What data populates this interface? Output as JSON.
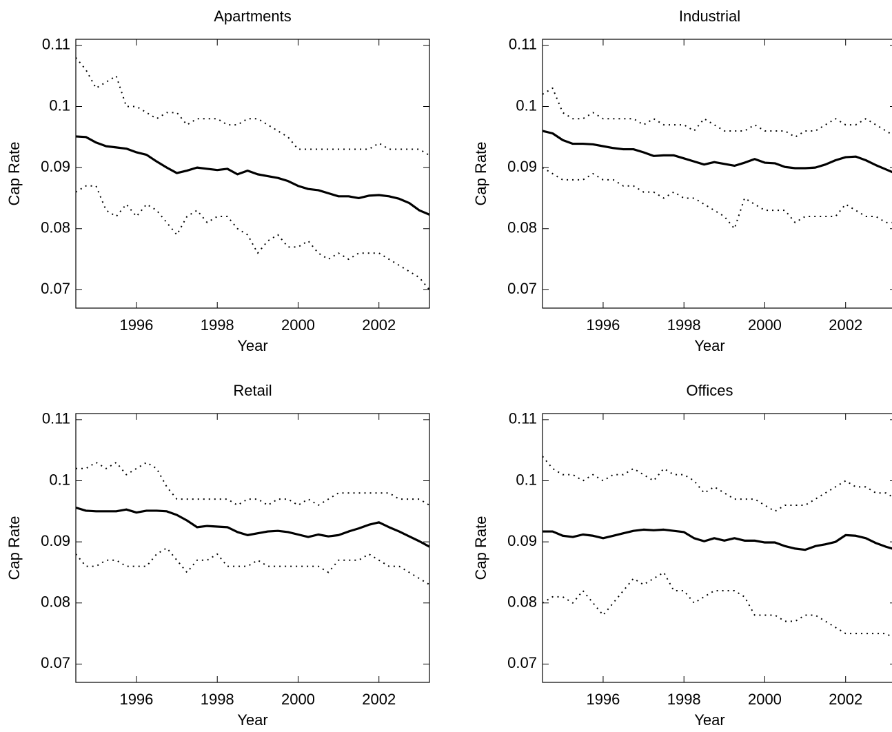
{
  "chart_data": [
    {
      "type": "line",
      "title": "Apartments",
      "xlabel": "Year",
      "ylabel": "Cap Rate",
      "x": [
        1994.5,
        1994.75,
        1995,
        1995.25,
        1995.5,
        1995.75,
        1996,
        1996.25,
        1996.5,
        1996.75,
        1997,
        1997.25,
        1997.5,
        1997.75,
        1998,
        1998.25,
        1998.5,
        1998.75,
        1999,
        1999.25,
        1999.5,
        1999.75,
        2000,
        2000.25,
        2000.5,
        2000.75,
        2001,
        2001.25,
        2001.5,
        2001.75,
        2002,
        2002.25,
        2002.5,
        2002.75,
        2003,
        2003.25
      ],
      "xlim": [
        1994.5,
        2003.25
      ],
      "xticks": [
        1996,
        1998,
        2000,
        2002
      ],
      "ylim": [
        0.067,
        0.111
      ],
      "yticks": [
        0.07,
        0.08,
        0.09,
        0.1,
        0.11
      ],
      "series": [
        {
          "color": "#000000",
          "style": "solid",
          "values": [
            0.0951,
            0.095,
            0.0941,
            0.0935,
            0.0933,
            0.0931,
            0.0925,
            0.0921,
            0.091,
            0.09,
            0.0891,
            0.0895,
            0.09,
            0.0898,
            0.0896,
            0.0898,
            0.0889,
            0.0895,
            0.0889,
            0.0886,
            0.0883,
            0.0878,
            0.087,
            0.0865,
            0.0863,
            0.0858,
            0.0853,
            0.0853,
            0.085,
            0.0854,
            0.0855,
            0.0853,
            0.0849,
            0.0842,
            0.083,
            0.0823
          ]
        },
        {
          "color": "#000000",
          "style": "dotted",
          "values": [
            0.108,
            0.106,
            0.103,
            0.104,
            0.105,
            0.1,
            0.1,
            0.099,
            0.098,
            0.099,
            0.099,
            0.097,
            0.098,
            0.098,
            0.098,
            0.097,
            0.097,
            0.098,
            0.098,
            0.097,
            0.096,
            0.095,
            0.093,
            0.093,
            0.093,
            0.093,
            0.093,
            0.093,
            0.093,
            0.093,
            0.094,
            0.093,
            0.093,
            0.093,
            0.093,
            0.092
          ]
        },
        {
          "color": "#000000",
          "style": "dotted",
          "values": [
            0.086,
            0.087,
            0.087,
            0.083,
            0.082,
            0.084,
            0.082,
            0.084,
            0.083,
            0.081,
            0.079,
            0.082,
            0.083,
            0.081,
            0.082,
            0.082,
            0.08,
            0.079,
            0.076,
            0.078,
            0.079,
            0.077,
            0.077,
            0.078,
            0.076,
            0.075,
            0.076,
            0.075,
            0.076,
            0.076,
            0.076,
            0.075,
            0.074,
            0.073,
            0.072,
            0.07
          ]
        }
      ]
    },
    {
      "type": "line",
      "title": "Industrial",
      "xlabel": "Year",
      "ylabel": "Cap Rate",
      "x": [
        1994.5,
        1994.75,
        1995,
        1995.25,
        1995.5,
        1995.75,
        1996,
        1996.25,
        1996.5,
        1996.75,
        1997,
        1997.25,
        1997.5,
        1997.75,
        1998,
        1998.25,
        1998.5,
        1998.75,
        1999,
        1999.25,
        1999.5,
        1999.75,
        2000,
        2000.25,
        2000.5,
        2000.75,
        2001,
        2001.25,
        2001.5,
        2001.75,
        2002,
        2002.25,
        2002.5,
        2002.75,
        2003,
        2003.25
      ],
      "xlim": [
        1994.5,
        2003.25
      ],
      "xticks": [
        1996,
        1998,
        2000,
        2002
      ],
      "ylim": [
        0.067,
        0.111
      ],
      "yticks": [
        0.07,
        0.08,
        0.09,
        0.1,
        0.11
      ],
      "series": [
        {
          "color": "#000000",
          "style": "solid",
          "values": [
            0.096,
            0.0956,
            0.0945,
            0.0939,
            0.0939,
            0.0938,
            0.0935,
            0.0932,
            0.093,
            0.093,
            0.0925,
            0.0919,
            0.092,
            0.092,
            0.0915,
            0.091,
            0.0905,
            0.0909,
            0.0906,
            0.0903,
            0.0908,
            0.0914,
            0.0908,
            0.0907,
            0.0901,
            0.0899,
            0.0899,
            0.09,
            0.0905,
            0.0912,
            0.0917,
            0.0918,
            0.0912,
            0.0904,
            0.0897,
            0.089
          ]
        },
        {
          "color": "#000000",
          "style": "dotted",
          "values": [
            0.102,
            0.103,
            0.099,
            0.098,
            0.098,
            0.099,
            0.098,
            0.098,
            0.098,
            0.098,
            0.097,
            0.098,
            0.097,
            0.097,
            0.097,
            0.096,
            0.098,
            0.097,
            0.096,
            0.096,
            0.096,
            0.097,
            0.096,
            0.096,
            0.096,
            0.095,
            0.096,
            0.096,
            0.097,
            0.098,
            0.097,
            0.097,
            0.098,
            0.097,
            0.096,
            0.095
          ]
        },
        {
          "color": "#000000",
          "style": "dotted",
          "values": [
            0.09,
            0.089,
            0.088,
            0.088,
            0.088,
            0.089,
            0.088,
            0.088,
            0.087,
            0.087,
            0.086,
            0.086,
            0.085,
            0.086,
            0.085,
            0.085,
            0.084,
            0.083,
            0.082,
            0.08,
            0.085,
            0.084,
            0.083,
            0.083,
            0.083,
            0.081,
            0.082,
            0.082,
            0.082,
            0.082,
            0.084,
            0.083,
            0.082,
            0.082,
            0.081,
            0.081
          ]
        }
      ]
    },
    {
      "type": "line",
      "title": "Retail",
      "xlabel": "Year",
      "ylabel": "Cap Rate",
      "x": [
        1994.5,
        1994.75,
        1995,
        1995.25,
        1995.5,
        1995.75,
        1996,
        1996.25,
        1996.5,
        1996.75,
        1997,
        1997.25,
        1997.5,
        1997.75,
        1998,
        1998.25,
        1998.5,
        1998.75,
        1999,
        1999.25,
        1999.5,
        1999.75,
        2000,
        2000.25,
        2000.5,
        2000.75,
        2001,
        2001.25,
        2001.5,
        2001.75,
        2002,
        2002.25,
        2002.5,
        2002.75,
        2003,
        2003.25
      ],
      "xlim": [
        1994.5,
        2003.25
      ],
      "xticks": [
        1996,
        1998,
        2000,
        2002
      ],
      "ylim": [
        0.067,
        0.111
      ],
      "yticks": [
        0.07,
        0.08,
        0.09,
        0.1,
        0.11
      ],
      "series": [
        {
          "color": "#000000",
          "style": "solid",
          "values": [
            0.0956,
            0.0951,
            0.095,
            0.095,
            0.095,
            0.0953,
            0.0948,
            0.0951,
            0.0951,
            0.095,
            0.0944,
            0.0935,
            0.0924,
            0.0926,
            0.0925,
            0.0924,
            0.0916,
            0.0911,
            0.0914,
            0.0917,
            0.0918,
            0.0916,
            0.0912,
            0.0908,
            0.0912,
            0.0909,
            0.0911,
            0.0917,
            0.0922,
            0.0928,
            0.0932,
            0.0924,
            0.0917,
            0.0909,
            0.0901,
            0.0892
          ]
        },
        {
          "color": "#000000",
          "style": "dotted",
          "values": [
            0.102,
            0.102,
            0.103,
            0.102,
            0.103,
            0.101,
            0.102,
            0.103,
            0.102,
            0.099,
            0.097,
            0.097,
            0.097,
            0.097,
            0.097,
            0.097,
            0.096,
            0.097,
            0.097,
            0.096,
            0.097,
            0.097,
            0.096,
            0.097,
            0.096,
            0.097,
            0.098,
            0.098,
            0.098,
            0.098,
            0.098,
            0.098,
            0.097,
            0.097,
            0.097,
            0.096
          ]
        },
        {
          "color": "#000000",
          "style": "dotted",
          "values": [
            0.088,
            0.086,
            0.086,
            0.087,
            0.087,
            0.086,
            0.086,
            0.086,
            0.088,
            0.089,
            0.087,
            0.085,
            0.087,
            0.087,
            0.088,
            0.086,
            0.086,
            0.086,
            0.087,
            0.086,
            0.086,
            0.086,
            0.086,
            0.086,
            0.086,
            0.085,
            0.087,
            0.087,
            0.087,
            0.088,
            0.087,
            0.086,
            0.086,
            0.085,
            0.084,
            0.083
          ]
        }
      ]
    },
    {
      "type": "line",
      "title": "Offices",
      "xlabel": "Year",
      "ylabel": "Cap Rate",
      "x": [
        1994.5,
        1994.75,
        1995,
        1995.25,
        1995.5,
        1995.75,
        1996,
        1996.25,
        1996.5,
        1996.75,
        1997,
        1997.25,
        1997.5,
        1997.75,
        1998,
        1998.25,
        1998.5,
        1998.75,
        1999,
        1999.25,
        1999.5,
        1999.75,
        2000,
        2000.25,
        2000.5,
        2000.75,
        2001,
        2001.25,
        2001.5,
        2001.75,
        2002,
        2002.25,
        2002.5,
        2002.75,
        2003,
        2003.25
      ],
      "xlim": [
        1994.5,
        2003.25
      ],
      "xticks": [
        1996,
        1998,
        2000,
        2002
      ],
      "ylim": [
        0.067,
        0.111
      ],
      "yticks": [
        0.07,
        0.08,
        0.09,
        0.1,
        0.11
      ],
      "series": [
        {
          "color": "#000000",
          "style": "solid",
          "values": [
            0.0917,
            0.0917,
            0.091,
            0.0908,
            0.0912,
            0.091,
            0.0906,
            0.091,
            0.0914,
            0.0918,
            0.092,
            0.0919,
            0.092,
            0.0918,
            0.0916,
            0.0906,
            0.0901,
            0.0906,
            0.0902,
            0.0906,
            0.0902,
            0.0902,
            0.0899,
            0.0899,
            0.0893,
            0.0889,
            0.0887,
            0.0893,
            0.0896,
            0.09,
            0.0911,
            0.091,
            0.0906,
            0.0898,
            0.0892,
            0.0887
          ]
        },
        {
          "color": "#000000",
          "style": "dotted",
          "values": [
            0.104,
            0.102,
            0.101,
            0.101,
            0.1,
            0.101,
            0.1,
            0.101,
            0.101,
            0.102,
            0.101,
            0.1,
            0.102,
            0.101,
            0.101,
            0.1,
            0.098,
            0.099,
            0.098,
            0.097,
            0.097,
            0.097,
            0.096,
            0.095,
            0.096,
            0.096,
            0.096,
            0.097,
            0.098,
            0.099,
            0.1,
            0.099,
            0.099,
            0.098,
            0.098,
            0.097
          ]
        },
        {
          "color": "#000000",
          "style": "dotted",
          "values": [
            0.08,
            0.081,
            0.081,
            0.08,
            0.082,
            0.08,
            0.078,
            0.08,
            0.082,
            0.084,
            0.083,
            0.084,
            0.085,
            0.082,
            0.082,
            0.08,
            0.081,
            0.082,
            0.082,
            0.082,
            0.081,
            0.078,
            0.078,
            0.078,
            0.077,
            0.077,
            0.078,
            0.078,
            0.077,
            0.076,
            0.075,
            0.075,
            0.075,
            0.075,
            0.075,
            0.074
          ]
        }
      ]
    }
  ]
}
